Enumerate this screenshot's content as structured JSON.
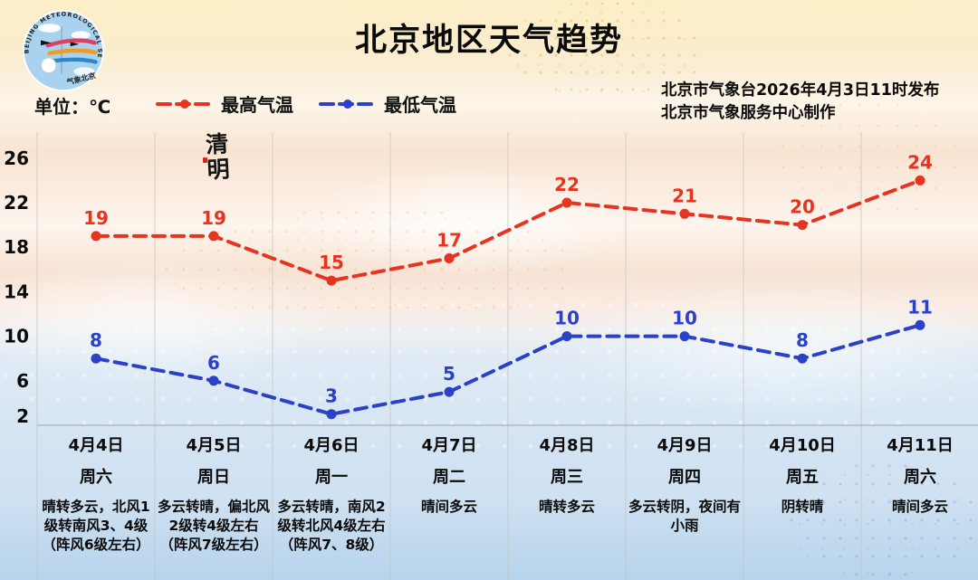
{
  "unit_label": "单位：℃",
  "issuer": {
    "line1": "北京市气象台2026年4月3日11时发布",
    "line2": "北京市气象服务中心制作"
  },
  "annotation": {
    "text": "清明"
  },
  "logo": {
    "text_arc": "BEIJING METEOROLOGICAL SERVICE",
    "text_bottom": "气象北京"
  },
  "colors": {
    "max_temp": "#e63420",
    "min_temp": "#2a41c8",
    "grid": "#c6c3be"
  },
  "chart_data": {
    "type": "line",
    "title": "北京地区天气趋势",
    "categories": [
      "4月4日",
      "4月5日",
      "4月6日",
      "4月7日",
      "4月8日",
      "4月9日",
      "4月10日",
      "4月11日"
    ],
    "weekdays": [
      "周六",
      "周日",
      "周一",
      "周二",
      "周三",
      "周四",
      "周五",
      "周六"
    ],
    "weather": [
      "晴转多云，北风1级转南风3、4级（阵风6级左右）",
      "多云转晴，偏北风2级转4级左右（阵风7级左右）",
      "多云转晴，南风2级转北风4级左右（阵风7、8级）",
      "晴间多云",
      "晴转多云",
      "多云转阴，夜间有小雨",
      "阴转晴",
      "晴间多云"
    ],
    "series": [
      {
        "name": "最高气温",
        "color": "#e63420",
        "values": [
          19,
          19,
          15,
          17,
          22,
          21,
          20,
          24
        ]
      },
      {
        "name": "最低气温",
        "color": "#2a41c8",
        "values": [
          8,
          6,
          3,
          5,
          10,
          10,
          8,
          11
        ]
      }
    ],
    "yticks": [
      2,
      6,
      10,
      14,
      18,
      22,
      26
    ],
    "ylim": [
      2,
      26
    ],
    "ylabel_unit": "℃",
    "grid": "vertical-column-separators",
    "legend_position": "top-left"
  }
}
